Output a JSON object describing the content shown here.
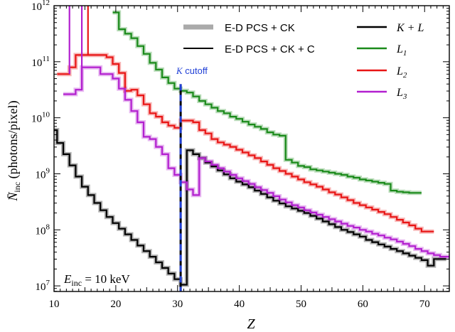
{
  "chart_data": {
    "type": "line",
    "ylabel_main": "N̄",
    "ylabel_sub": "inc",
    "ylabel_unit": " (photons/pixel)",
    "xlabel": "Z",
    "xlim": [
      10,
      74
    ],
    "ylim_log10": [
      6.9,
      12
    ],
    "y_scale": "log",
    "xticks": [
      10,
      20,
      30,
      40,
      50,
      60,
      70
    ],
    "yticks": [
      {
        "exp": 7,
        "text": "10",
        "sup": "7"
      },
      {
        "exp": 8,
        "text": "10",
        "sup": "8"
      },
      {
        "exp": 9,
        "text": "10",
        "sup": "9"
      },
      {
        "exp": 10,
        "text": "10",
        "sup": "10"
      },
      {
        "exp": 11,
        "text": "10",
        "sup": "11"
      },
      {
        "exp": 12,
        "text": "10",
        "sup": "12"
      }
    ],
    "legend": {
      "style_entries": [
        {
          "label": "E-D PCS + CK",
          "style": "thick-grey"
        },
        {
          "label": "E-D PCS + CK + C",
          "style": "thin-black"
        }
      ],
      "series_entries": [
        {
          "label": "K + L",
          "color": "#000000"
        },
        {
          "label_main": "L",
          "label_sub": "1",
          "color": "#1a8a1a"
        },
        {
          "label_main": "L",
          "label_sub": "2",
          "color": "#e81515"
        },
        {
          "label_main": "L",
          "label_sub": "3",
          "color": "#b21fcf"
        }
      ]
    },
    "annotation": {
      "label_italic": "K",
      "label_rest": " cutoff",
      "x": 30.5,
      "color": "#1f3fd6"
    },
    "inset_label": {
      "main": "E",
      "sub": "inc",
      "rest": " = 10 keV"
    },
    "colors": {
      "KL": "#000000",
      "L1": "#1a8a1a",
      "L2": "#e81515",
      "L3": "#b21fcf",
      "cutoff": "#1f3fd6",
      "ck_grey": "#aaaaaa"
    },
    "series": [
      {
        "name": "K + L",
        "key": "KL",
        "x": [
          10,
          11,
          12,
          13,
          14,
          15,
          16,
          17,
          18,
          19,
          20,
          21,
          22,
          23,
          24,
          25,
          26,
          27,
          28,
          29,
          30,
          31,
          32,
          33,
          34,
          35,
          36,
          37,
          38,
          39,
          40,
          41,
          42,
          43,
          44,
          45,
          46,
          47,
          48,
          49,
          50,
          51,
          52,
          53,
          54,
          55,
          56,
          57,
          58,
          59,
          60,
          61,
          62,
          63,
          64,
          65,
          66,
          67,
          68,
          69,
          70,
          71,
          72,
          73
        ],
        "log": [
          9.78,
          9.55,
          9.35,
          9.15,
          8.95,
          8.77,
          8.62,
          8.48,
          8.35,
          8.23,
          8.12,
          8.02,
          7.92,
          7.82,
          7.72,
          7.62,
          7.52,
          7.42,
          7.32,
          7.22,
          7.12,
          7.02,
          9.42,
          9.35,
          9.28,
          9.2,
          9.13,
          9.06,
          8.99,
          8.92,
          8.86,
          8.81,
          8.76,
          8.7,
          8.64,
          8.58,
          8.52,
          8.47,
          8.42,
          8.38,
          8.34,
          8.3,
          8.25,
          8.2,
          8.15,
          8.1,
          8.05,
          8.0,
          7.96,
          7.92,
          7.88,
          7.82,
          7.78,
          7.74,
          7.7,
          7.66,
          7.62,
          7.58,
          7.54,
          7.5,
          7.46,
          7.36,
          7.48,
          7.48
        ]
      },
      {
        "name": "L1",
        "key": "L1",
        "x": [
          20,
          21,
          22,
          23,
          24,
          25,
          26,
          27,
          28,
          29,
          30,
          31,
          32,
          33,
          34,
          35,
          36,
          37,
          38,
          39,
          40,
          41,
          42,
          43,
          44,
          45,
          46,
          47,
          48,
          49,
          50,
          51,
          52,
          53,
          54,
          55,
          56,
          57,
          58,
          59,
          60,
          61,
          62,
          63,
          64,
          65,
          66,
          67,
          68,
          69
        ],
        "log": [
          11.88,
          11.58,
          11.5,
          11.42,
          11.28,
          11.14,
          10.98,
          10.86,
          10.72,
          10.62,
          10.52,
          10.48,
          10.45,
          10.38,
          10.3,
          10.24,
          10.18,
          10.12,
          10.08,
          10.02,
          9.98,
          9.93,
          9.88,
          9.84,
          9.8,
          9.74,
          9.7,
          9.68,
          9.25,
          9.2,
          9.14,
          9.12,
          9.08,
          9.06,
          9.04,
          9.02,
          9.0,
          8.98,
          8.95,
          8.93,
          8.9,
          8.88,
          8.86,
          8.84,
          8.82,
          8.7,
          8.68,
          8.67,
          8.66,
          8.66
        ]
      },
      {
        "name": "L2",
        "key": "L2",
        "x": [
          11,
          12,
          13,
          14,
          15,
          16,
          17,
          18,
          19,
          20,
          21,
          22,
          23,
          24,
          25,
          26,
          27,
          28,
          29,
          30,
          31,
          32,
          33,
          34,
          35,
          36,
          37,
          38,
          39,
          40,
          41,
          42,
          43,
          44,
          45,
          46,
          47,
          48,
          49,
          50,
          51,
          52,
          53,
          54,
          55,
          56,
          57,
          58,
          59,
          60,
          61,
          62,
          63,
          64,
          65,
          66,
          67,
          68,
          69,
          70,
          71
        ],
        "log": [
          10.78,
          10.78,
          10.9,
          11.12,
          11.12,
          11.12,
          11.12,
          11.12,
          11.08,
          10.96,
          10.8,
          10.48,
          10.5,
          10.4,
          10.24,
          10.08,
          10.02,
          9.92,
          9.86,
          9.82,
          9.95,
          9.95,
          9.92,
          9.78,
          9.72,
          9.62,
          9.56,
          9.52,
          9.48,
          9.43,
          9.38,
          9.33,
          9.28,
          9.22,
          9.16,
          9.1,
          9.05,
          9.0,
          8.95,
          8.9,
          8.85,
          8.81,
          8.77,
          8.72,
          8.67,
          8.63,
          8.58,
          8.53,
          8.48,
          8.44,
          8.4,
          8.36,
          8.32,
          8.28,
          8.23,
          8.18,
          8.13,
          8.08,
          8.02,
          7.97,
          7.97
        ]
      },
      {
        "name": "L3",
        "key": "L3",
        "x": [
          12,
          13,
          14,
          15,
          16,
          17,
          18,
          19,
          20,
          21,
          22,
          23,
          24,
          25,
          26,
          27,
          28,
          29,
          30,
          31,
          32,
          33,
          34,
          35,
          36,
          37,
          38,
          39,
          40,
          41,
          42,
          43,
          44,
          45,
          46,
          47,
          48,
          49,
          50,
          51,
          52,
          53,
          54,
          55,
          56,
          57,
          58,
          59,
          60,
          61,
          62,
          63,
          64,
          65,
          66,
          67,
          68,
          69,
          70,
          71,
          72,
          73,
          74
        ],
        "log": [
          10.42,
          10.42,
          10.5,
          10.9,
          10.9,
          10.9,
          10.78,
          10.78,
          10.7,
          10.52,
          10.32,
          10.12,
          9.92,
          9.66,
          9.62,
          9.48,
          9.35,
          9.1,
          8.98,
          8.85,
          8.72,
          8.62,
          9.28,
          9.22,
          9.16,
          9.1,
          9.04,
          8.98,
          8.92,
          8.87,
          8.82,
          8.76,
          8.71,
          8.66,
          8.6,
          8.54,
          8.49,
          8.44,
          8.4,
          8.35,
          8.31,
          8.27,
          8.23,
          8.19,
          8.15,
          8.11,
          8.07,
          8.04,
          8.0,
          7.97,
          7.93,
          7.9,
          7.86,
          7.83,
          7.79,
          7.75,
          7.71,
          7.66,
          7.62,
          7.58,
          7.55,
          7.52,
          7.52
        ]
      }
    ]
  }
}
